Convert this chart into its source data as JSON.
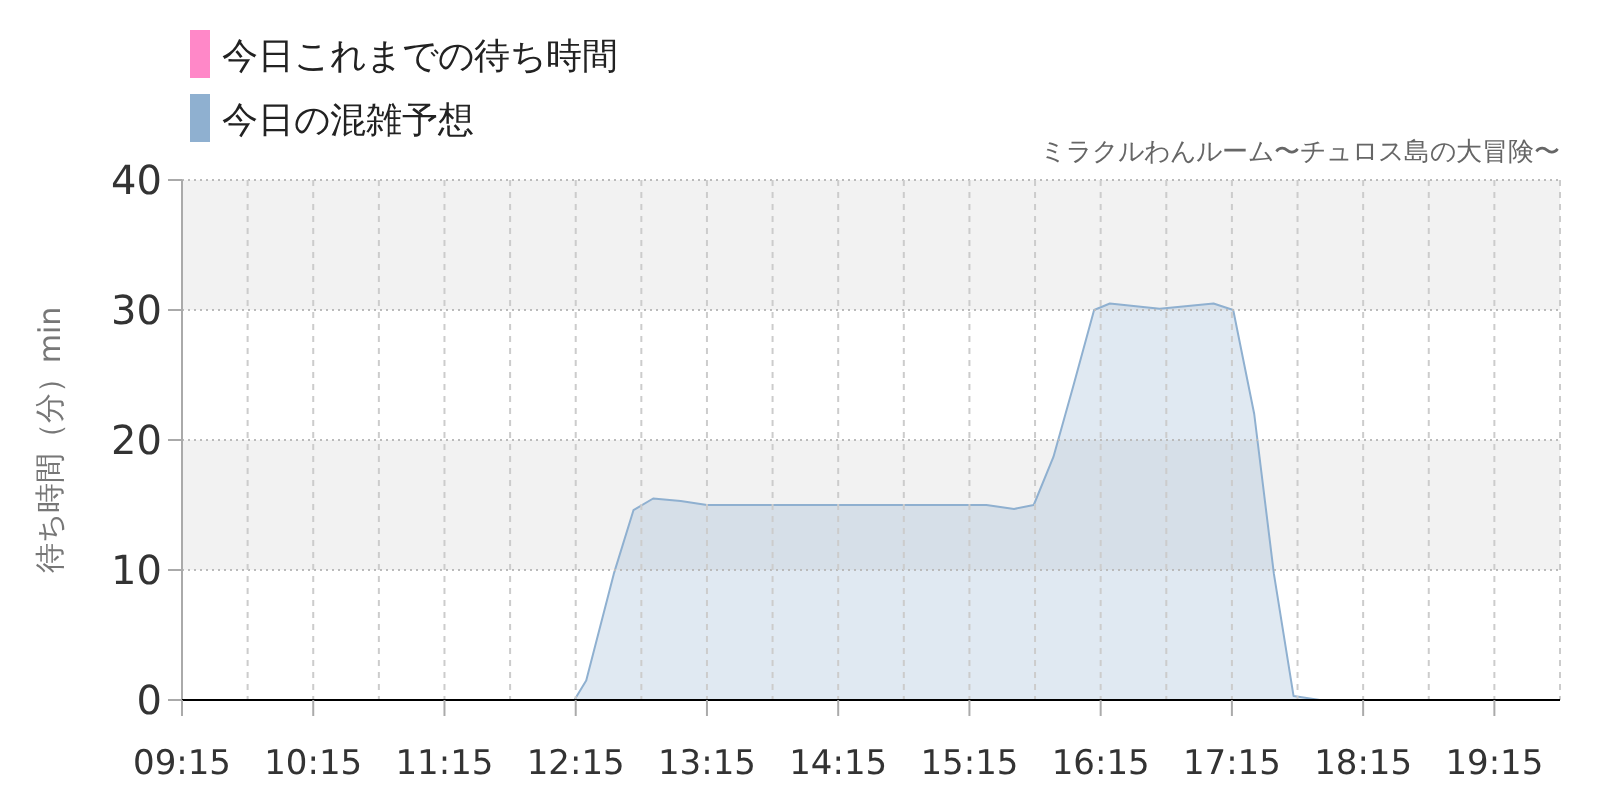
{
  "chart_data": {
    "type": "area",
    "subtitle": "ミラクルわんルーム〜チュロス島の大冒険〜",
    "ylabel": "待ち時間（分）min",
    "x": [
      9.25,
      11.83,
      12.1,
      12.24,
      12.33,
      12.54,
      12.69,
      12.84,
      13.05,
      13.25,
      15.38,
      15.59,
      15.74,
      15.89,
      16.04,
      16.2,
      16.32,
      16.7,
      17.11,
      17.26,
      17.42,
      17.57,
      17.72,
      17.92,
      18.18,
      19.75
    ],
    "series": [
      {
        "name": "今日これまでの待ち時間",
        "color": "#ff88c8",
        "values": [
          null,
          null,
          null,
          null,
          null,
          null,
          null,
          null,
          null,
          null,
          null,
          null,
          null,
          null,
          null,
          null,
          null,
          null,
          null,
          null,
          null,
          null,
          null,
          null,
          null,
          null
        ]
      },
      {
        "name": "今日の混雑予想",
        "color": "#8fb0d0",
        "values": [
          0,
          0,
          0,
          0,
          1.5,
          9.7,
          14.6,
          15.5,
          15.3,
          15,
          15,
          14.7,
          15,
          18.7,
          24.1,
          30,
          30.5,
          30.1,
          30.5,
          30,
          22,
          9.7,
          0.3,
          0,
          0,
          0
        ]
      }
    ],
    "xlim": [
      9.25,
      19.75
    ],
    "ylim": [
      0,
      40
    ],
    "xticks": [
      {
        "value": 9.25,
        "label": "09:15"
      },
      {
        "value": 9.75,
        "label": null
      },
      {
        "value": 10.25,
        "label": "10:15"
      },
      {
        "value": 10.75,
        "label": null
      },
      {
        "value": 11.25,
        "label": "11:15"
      },
      {
        "value": 11.75,
        "label": null
      },
      {
        "value": 12.25,
        "label": "12:15"
      },
      {
        "value": 12.75,
        "label": null
      },
      {
        "value": 13.25,
        "label": "13:15"
      },
      {
        "value": 13.75,
        "label": null
      },
      {
        "value": 14.25,
        "label": "14:15"
      },
      {
        "value": 14.75,
        "label": null
      },
      {
        "value": 15.25,
        "label": "15:15"
      },
      {
        "value": 15.75,
        "label": null
      },
      {
        "value": 16.25,
        "label": "16:15"
      },
      {
        "value": 16.75,
        "label": null
      },
      {
        "value": 17.25,
        "label": "17:15"
      },
      {
        "value": 17.75,
        "label": null
      },
      {
        "value": 18.25,
        "label": "18:15"
      },
      {
        "value": 18.75,
        "label": null
      },
      {
        "value": 19.25,
        "label": "19:15"
      }
    ],
    "yticks": [
      0,
      10,
      20,
      30,
      40
    ],
    "grid": true,
    "legend": "top left"
  }
}
